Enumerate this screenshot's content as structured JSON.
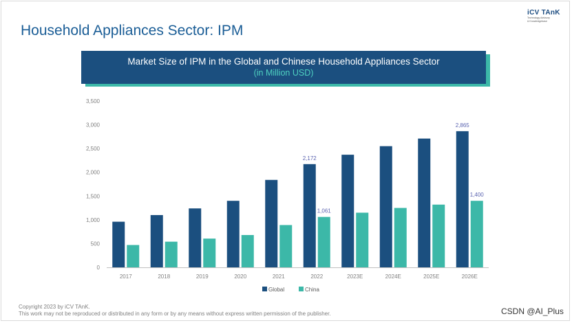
{
  "page": {
    "title": "Household Appliances Sector: IPM"
  },
  "logo": {
    "name": "iCV TAnK",
    "tagline_1": "Technology Advisory",
    "tagline_2": "& Knowledgebase"
  },
  "banner": {
    "title": "Market Size of IPM in the Global and Chinese Household Appliances Sector",
    "subtitle": "(in Million USD)"
  },
  "chart_data": {
    "type": "bar",
    "title": "Market Size of IPM in the Global and Chinese Household Appliances Sector",
    "subtitle": "(in Million USD)",
    "xlabel": "",
    "ylabel": "",
    "ylim": [
      0,
      3500
    ],
    "yticks": [
      0,
      500,
      1000,
      1500,
      2000,
      2500,
      3000,
      3500
    ],
    "ytick_labels": [
      "0",
      "500",
      "1,000",
      "1,500",
      "2,000",
      "2,500",
      "3,000",
      "3,500"
    ],
    "grid": false,
    "legend_position": "bottom-center",
    "categories": [
      "2017",
      "2018",
      "2019",
      "2020",
      "2021",
      "2022",
      "2023E",
      "2024E",
      "2025E",
      "2026E"
    ],
    "series": [
      {
        "name": "Global",
        "color": "#1b4f7f",
        "values": [
          960,
          1100,
          1240,
          1400,
          1840,
          2172,
          2370,
          2550,
          2710,
          2865
        ]
      },
      {
        "name": "China",
        "color": "#3cb8a8",
        "values": [
          470,
          540,
          605,
          680,
          890,
          1061,
          1150,
          1250,
          1320,
          1400
        ]
      }
    ],
    "data_labels": [
      {
        "series": "Global",
        "category": "2022",
        "value": 2172,
        "text": "2,172"
      },
      {
        "series": "China",
        "category": "2022",
        "value": 1061,
        "text": "1,061"
      },
      {
        "series": "Global",
        "category": "2026E",
        "value": 2865,
        "text": "2,865"
      },
      {
        "series": "China",
        "category": "2026E",
        "value": 1400,
        "text": "1,400"
      }
    ],
    "label_color": "#5a63b0",
    "axis_color": "#bfbfbf",
    "tick_text_color": "#7f7f7f"
  },
  "footer": {
    "copyright": "Copyright  2023 by iCV TAnK.",
    "notice": "This work may not be reproduced or distributed in any form or by any means without express written permission of the publisher."
  },
  "watermark": "CSDN @AI_Plus"
}
